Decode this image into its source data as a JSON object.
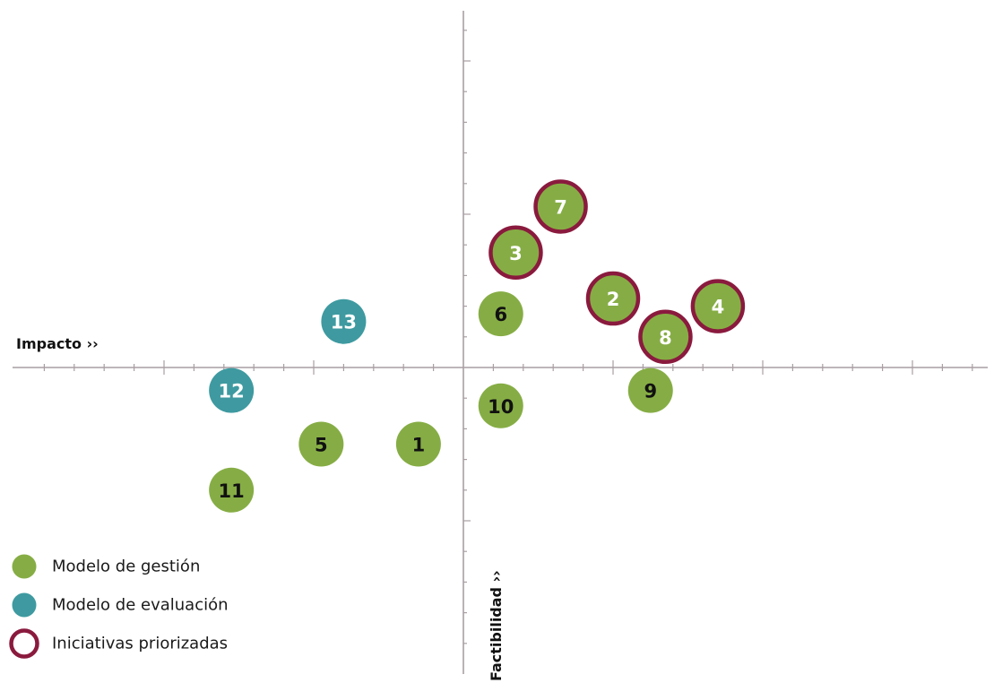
{
  "chart_data": {
    "type": "scatter",
    "x_label": "Impacto ››",
    "y_label": "Factibilidad ››",
    "colors": {
      "Modelo de gestión": "#86ad45",
      "Modelo de evaluación": "#3e9aa0",
      "priority_ring": "#8a1a3e",
      "axis": "#a99ea3"
    },
    "points": [
      {
        "label": "1",
        "group": "Modelo de gestión",
        "x": -0.3,
        "y": -0.5,
        "priority": false,
        "text_color": "#111111"
      },
      {
        "label": "2",
        "group": "Modelo de gestión",
        "x": 1.0,
        "y": 0.45,
        "priority": true,
        "text_color": "#ffffff"
      },
      {
        "label": "3",
        "group": "Modelo de gestión",
        "x": 0.35,
        "y": 0.75,
        "priority": true,
        "text_color": "#ffffff"
      },
      {
        "label": "4",
        "group": "Modelo de gestión",
        "x": 1.7,
        "y": 0.4,
        "priority": true,
        "text_color": "#ffffff"
      },
      {
        "label": "5",
        "group": "Modelo de gestión",
        "x": -0.95,
        "y": -0.5,
        "priority": false,
        "text_color": "#111111"
      },
      {
        "label": "6",
        "group": "Modelo de gestión",
        "x": 0.25,
        "y": 0.35,
        "priority": false,
        "text_color": "#111111"
      },
      {
        "label": "7",
        "group": "Modelo de gestión",
        "x": 0.65,
        "y": 1.05,
        "priority": true,
        "text_color": "#ffffff"
      },
      {
        "label": "8",
        "group": "Modelo de gestión",
        "x": 1.35,
        "y": 0.2,
        "priority": true,
        "text_color": "#ffffff"
      },
      {
        "label": "9",
        "group": "Modelo de gestión",
        "x": 1.25,
        "y": -0.15,
        "priority": false,
        "text_color": "#111111"
      },
      {
        "label": "10",
        "group": "Modelo de gestión",
        "x": 0.25,
        "y": -0.25,
        "priority": false,
        "text_color": "#111111"
      },
      {
        "label": "11",
        "group": "Modelo de gestión",
        "x": -1.55,
        "y": -0.8,
        "priority": false,
        "text_color": "#111111"
      },
      {
        "label": "12",
        "group": "Modelo de evaluación",
        "x": -1.55,
        "y": -0.15,
        "priority": false,
        "text_color": "#ffffff"
      },
      {
        "label": "13",
        "group": "Modelo de evaluación",
        "x": -0.8,
        "y": 0.3,
        "priority": false,
        "text_color": "#ffffff"
      }
    ],
    "legend": [
      {
        "label": "Modelo de gestión",
        "kind": "dot",
        "color": "#86ad45"
      },
      {
        "label": "Modelo de evaluación",
        "kind": "dot",
        "color": "#3e9aa0"
      },
      {
        "label": "Iniciativas priorizadas",
        "kind": "ring",
        "color": "#8a1a3e"
      }
    ],
    "legend_position": "bottom-left",
    "grid": false
  }
}
